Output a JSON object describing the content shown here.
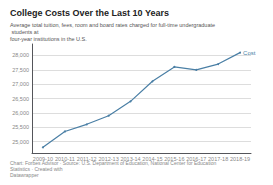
{
  "chart_data": {
    "type": "line",
    "title": "College Costs Over the Last 10 Years",
    "subtitle": "Average total tuition, fees, room and board rates charged for full-time undergraduate students at\nfour-year institutions in the U.S.",
    "footer": "Chart: Forbes Advisor · Source: U.S. Department of Education, National Center for Education Statistics · Created with\nDatawrapper",
    "categories": [
      "2009-10",
      "2010-11",
      "2011-12",
      "2012-13",
      "2013-14",
      "2014-15",
      "2015-16",
      "2016-17",
      "2017-18",
      "2018-19"
    ],
    "series": [
      {
        "name": "Cost",
        "color": "#4a7fa5",
        "values": [
          24800,
          25350,
          25600,
          25900,
          26400,
          27100,
          27600,
          27500,
          27700,
          28100
        ]
      }
    ],
    "ylim": [
      24600,
      28400
    ],
    "yticks": [
      {
        "value": 25000,
        "label": "25,000"
      },
      {
        "value": 25500,
        "label": "25,500"
      },
      {
        "value": 26000,
        "label": "26,000"
      },
      {
        "value": 26500,
        "label": "26,500"
      },
      {
        "value": 27000,
        "label": "27,000"
      },
      {
        "value": 27500,
        "label": "27,500"
      },
      {
        "value": 28000,
        "label": "28,000"
      }
    ],
    "grid": true
  }
}
